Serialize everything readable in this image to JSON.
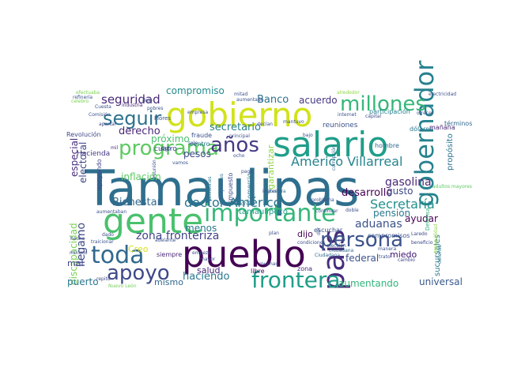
{
  "words": [
    {
      "text": "Tamaulipas",
      "color": "#2f6f8e"
    },
    {
      "text": "pueblo",
      "color": "#440154"
    },
    {
      "text": "gobierno",
      "color": "#d2e21b"
    },
    {
      "text": "gente",
      "color": "#4ac16d"
    },
    {
      "text": "salario",
      "color": "#1f9e89"
    },
    {
      "text": "país",
      "color": "#472d7b"
    },
    {
      "text": "gobernador",
      "color": "#26828e"
    },
    {
      "text": "millones",
      "color": "#35b779"
    },
    {
      "text": "importante",
      "color": "#35b779"
    },
    {
      "text": "frontera",
      "color": "#1f9e89"
    },
    {
      "text": "persona",
      "color": "#3b528b"
    },
    {
      "text": "programa",
      "color": "#5ec962"
    },
    {
      "text": "toda",
      "color": "#31688e"
    },
    {
      "text": "apoyo",
      "color": "#3e4989"
    },
    {
      "text": "años",
      "color": "#443983"
    },
    {
      "text": "seguir",
      "color": "#2c728e"
    },
    {
      "text": "Américo Villarreal",
      "color": "#25848e"
    },
    {
      "text": "doctor Américo",
      "color": "#2a768e"
    },
    {
      "text": "Secretaría",
      "color": "#21918c"
    },
    {
      "text": "zona fronteriza",
      "color": "#414487"
    },
    {
      "text": "seguridad",
      "color": "#482878"
    },
    {
      "text": "Bienestar",
      "color": "#31688e"
    },
    {
      "text": "derecho",
      "color": "#482677"
    },
    {
      "text": "próximo",
      "color": "#4ac16d"
    },
    {
      "text": "secretario",
      "color": "#26828e"
    },
    {
      "text": "inflación",
      "color": "#5ec962"
    },
    {
      "text": "pesos",
      "color": "#3e4989"
    },
    {
      "text": "gasolina",
      "color": "#482878"
    },
    {
      "text": "desarrollo",
      "color": "#440154"
    },
    {
      "text": "aduanas",
      "color": "#3b528b"
    },
    {
      "text": "pensión",
      "color": "#2a788e"
    },
    {
      "text": "Banco",
      "color": "#2c728e"
    },
    {
      "text": "acuerdo",
      "color": "#453781"
    },
    {
      "text": "compromiso",
      "color": "#238a8d"
    },
    {
      "text": "especial",
      "color": "#472c7a"
    },
    {
      "text": "electoral",
      "color": "#3f4788"
    },
    {
      "text": "discapacidad",
      "color": "#7ad151"
    },
    {
      "text": "llegamo",
      "color": "#3e4989"
    },
    {
      "text": "menos",
      "color": "#2a788e"
    },
    {
      "text": "federal",
      "color": "#3b528b"
    },
    {
      "text": "ayudar",
      "color": "#440154"
    },
    {
      "text": "haciendo",
      "color": "#2a788e"
    },
    {
      "text": "salud",
      "color": "#482475"
    },
    {
      "text": "mismo",
      "color": "#31688e"
    },
    {
      "text": "puerto",
      "color": "#2a788e"
    },
    {
      "text": "aumentando",
      "color": "#31b57b"
    },
    {
      "text": "universal",
      "color": "#38598c"
    },
    {
      "text": "miedo",
      "color": "#3b0f70"
    },
    {
      "text": "dijo",
      "color": "#440154"
    },
    {
      "text": "Creo",
      "color": "#d8e219"
    },
    {
      "text": "gusto",
      "color": "#3e4989"
    },
    {
      "text": "mal",
      "color": "#404688"
    },
    {
      "text": "garantizar",
      "color": "#8fd744"
    },
    {
      "text": "sucursales",
      "color": "#2a788e"
    },
    {
      "text": "propósito",
      "color": "#2c728e"
    },
    {
      "text": "tamaulipeco",
      "color": "#1f9e89"
    },
    {
      "text": "Hacienda",
      "color": "#443983"
    },
    {
      "text": "cuatro",
      "color": "#3e4989"
    },
    {
      "text": "Revolución",
      "color": "#3e4989"
    },
    {
      "text": "fraude",
      "color": "#3b528b"
    },
    {
      "text": "centro",
      "color": "#2a788e"
    },
    {
      "text": "impuesto",
      "color": "#3e4989"
    },
    {
      "text": "comercio",
      "color": "#2a788e"
    },
    {
      "text": "apoyando",
      "color": "#404688"
    },
    {
      "text": "zona",
      "color": "#482878"
    },
    {
      "text": "libre",
      "color": "#440154"
    },
    {
      "text": "siempre",
      "color": "#482878"
    },
    {
      "text": "hombre",
      "color": "#31688e"
    },
    {
      "text": "compromisos",
      "color": "#3b528b"
    },
    {
      "text": "reuniones",
      "color": "#3b528b"
    },
    {
      "text": "escuchar",
      "color": "#3b528b"
    },
    {
      "text": "dólares",
      "color": "#2a788e"
    },
    {
      "text": "mañana",
      "color": "#482475"
    },
    {
      "text": "términos",
      "color": "#31688e"
    },
    {
      "text": "participación",
      "color": "#26828e"
    },
    {
      "text": "industria",
      "color": "#482878"
    },
    {
      "text": "pobres",
      "color": "#3b528b"
    },
    {
      "text": "Flores",
      "color": "#3b528b"
    },
    {
      "text": "electricidad",
      "color": "#3b528b"
    },
    {
      "text": "mitad",
      "color": "#3b528b"
    },
    {
      "text": "aumentado",
      "color": "#3b528b"
    },
    {
      "text": "empresa",
      "color": "#3b528b"
    },
    {
      "text": "ofrecer",
      "color": "#3b528b"
    },
    {
      "text": "cambio",
      "color": "#3e4989"
    },
    {
      "text": "Ciudadana",
      "color": "#31688e"
    },
    {
      "text": "ciudadana",
      "color": "#31688e"
    },
    {
      "text": "elección",
      "color": "#3b528b"
    },
    {
      "text": "defensa",
      "color": "#2a788e"
    },
    {
      "text": "Laredo",
      "color": "#3e4989"
    },
    {
      "text": "beneficio",
      "color": "#3e4989"
    },
    {
      "text": "historia",
      "color": "#2a788e"
    },
    {
      "text": "decisiones",
      "color": "#2a788e"
    },
    {
      "text": "trabajadores",
      "color": "#31688e"
    },
    {
      "text": "mínimo",
      "color": "#3e4989"
    },
    {
      "text": "hecho",
      "color": "#3e4989"
    },
    {
      "text": "repito",
      "color": "#3e4989"
    },
    {
      "text": "Nuevo León",
      "color": "#73d056"
    },
    {
      "text": "traicionar",
      "color": "#3b528b"
    },
    {
      "text": "adelante",
      "color": "#3b528b"
    },
    {
      "text": "empezó",
      "color": "#3b528b"
    },
    {
      "text": "mayor",
      "color": "#3b528b"
    },
    {
      "text": "manera",
      "color": "#3b528b"
    },
    {
      "text": "trato",
      "color": "#3b528b"
    },
    {
      "text": "plan",
      "color": "#3b528b"
    },
    {
      "text": "muchas",
      "color": "#3b528b"
    },
    {
      "text": "problema",
      "color": "#3b528b"
    },
    {
      "text": "continuar",
      "color": "#3b528b"
    },
    {
      "text": "doble",
      "color": "#3b528b"
    },
    {
      "text": "Altamira",
      "color": "#2a788e"
    },
    {
      "text": "corrupción",
      "color": "#31688e"
    },
    {
      "text": "condiciones",
      "color": "#3b528b"
    },
    {
      "text": "principal",
      "color": "#3b528b"
    },
    {
      "text": "mantuvo",
      "color": "#3b528b"
    },
    {
      "text": "aportar",
      "color": "#3e4989"
    },
    {
      "text": "capital",
      "color": "#3e4989"
    },
    {
      "text": "bajo",
      "color": "#3b528b"
    },
    {
      "text": "Cuesta",
      "color": "#3b528b"
    },
    {
      "text": "mil",
      "color": "#482878"
    },
    {
      "text": "Comisión",
      "color": "#3b528b"
    },
    {
      "text": "internet",
      "color": "#3b528b"
    },
    {
      "text": "refinería",
      "color": "#3b528b"
    },
    {
      "text": "celebro",
      "color": "#7ad151"
    },
    {
      "text": "efectuaba",
      "color": "#7ad151"
    },
    {
      "text": "alrededor",
      "color": "#8fd744"
    },
    {
      "text": "adultos mayores",
      "color": "#5ec962"
    },
    {
      "text": "Defensa",
      "color": "#35b779"
    },
    {
      "text": "tranquilidad",
      "color": "#8fd744"
    },
    {
      "text": "dar",
      "color": "#3b528b"
    },
    {
      "text": "dejo",
      "color": "#3b528b"
    },
    {
      "text": "vamos",
      "color": "#3b528b"
    },
    {
      "text": "decían",
      "color": "#3b528b"
    },
    {
      "text": "ocho",
      "color": "#3b528b"
    },
    {
      "text": "dado",
      "color": "#3b528b"
    },
    {
      "text": "aumentaban",
      "color": "#3b528b"
    },
    {
      "text": "ingresos",
      "color": "#3b528b"
    },
    {
      "text": "reunión",
      "color": "#3b528b"
    },
    {
      "text": "pago",
      "color": "#3b528b"
    },
    {
      "text": "digo",
      "color": "#3b528b"
    },
    {
      "text": "sale",
      "color": "#3b528b"
    }
  ]
}
